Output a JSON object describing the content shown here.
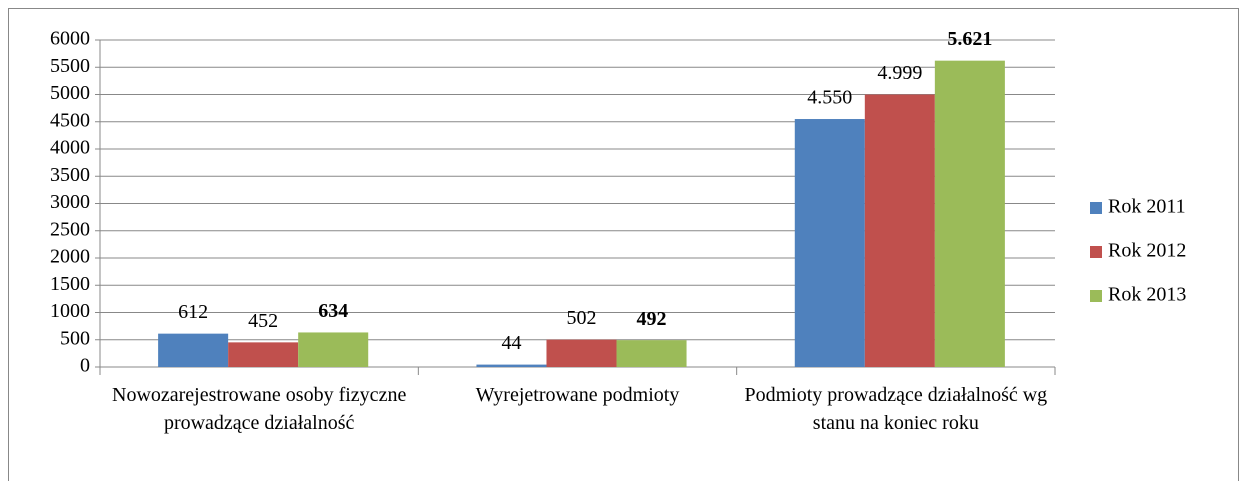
{
  "chart_data": {
    "type": "bar",
    "categories": [
      "Nowozarejestrowane osoby fizyczne prowadzące działalność",
      "Wyrejetrowane podmioty",
      "Podmioty prowadzące działalność wg stanu na koniec roku"
    ],
    "series": [
      {
        "name": "Rok 2011",
        "color": "#4f81bd",
        "values": [
          612,
          44,
          4550
        ],
        "value_labels": [
          "612",
          "44",
          "4.550"
        ],
        "label_bold": false
      },
      {
        "name": "Rok 2012",
        "color": "#c0504d",
        "values": [
          452,
          502,
          4999
        ],
        "value_labels": [
          "452",
          "502",
          "4.999"
        ],
        "label_bold": false
      },
      {
        "name": "Rok 2013",
        "color": "#9bbb59",
        "values": [
          634,
          492,
          5621
        ],
        "value_labels": [
          "634",
          "492",
          "5.621"
        ],
        "label_bold": true
      }
    ],
    "ylim": [
      0,
      6000
    ],
    "yticks": [
      0,
      500,
      1000,
      1500,
      2000,
      2500,
      3000,
      3500,
      4000,
      4500,
      5000,
      5500,
      6000
    ],
    "grid": true,
    "legend": "right"
  }
}
